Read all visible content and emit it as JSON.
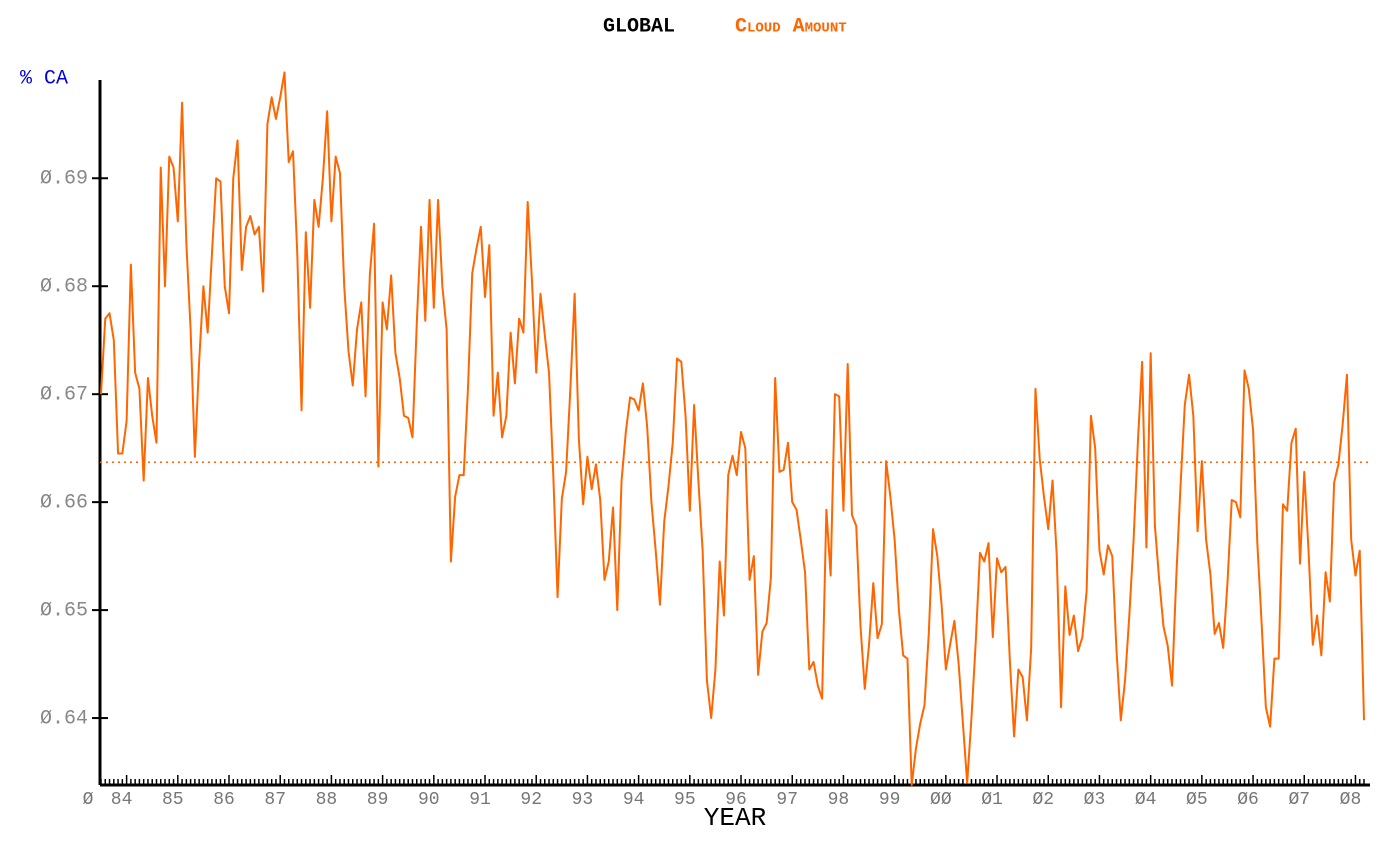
{
  "chart_data": {
    "type": "line",
    "title": "GLOBAL",
    "subtitle": "Cloud Amount",
    "ylabel": "% CA",
    "xlabel": "YEAR",
    "origin_label": "Ø",
    "ylim": [
      0.6338,
      0.6991
    ],
    "yticks": [
      {
        "value": 0.64,
        "label": "Ø.64"
      },
      {
        "value": 0.65,
        "label": "Ø.65"
      },
      {
        "value": 0.66,
        "label": "Ø.66"
      },
      {
        "value": 0.67,
        "label": "Ø.67"
      },
      {
        "value": 0.68,
        "label": "Ø.68"
      },
      {
        "value": 0.69,
        "label": "Ø.69"
      }
    ],
    "reference_line": 0.6637,
    "categories": [
      null,
      null,
      null,
      null,
      null,
      null,
      "84",
      null,
      null,
      null,
      null,
      null,
      null,
      null,
      null,
      null,
      null,
      null,
      "85",
      null,
      null,
      null,
      null,
      null,
      null,
      null,
      null,
      null,
      null,
      null,
      "86",
      null,
      null,
      null,
      null,
      null,
      null,
      null,
      null,
      null,
      null,
      null,
      "87",
      null,
      null,
      null,
      null,
      null,
      null,
      null,
      null,
      null,
      null,
      null,
      "88",
      null,
      null,
      null,
      null,
      null,
      null,
      null,
      null,
      null,
      null,
      null,
      "89",
      null,
      null,
      null,
      null,
      null,
      null,
      null,
      null,
      null,
      null,
      null,
      "90",
      null,
      null,
      null,
      null,
      null,
      null,
      null,
      null,
      null,
      null,
      null,
      "91",
      null,
      null,
      null,
      null,
      null,
      null,
      null,
      null,
      null,
      null,
      null,
      "92",
      null,
      null,
      null,
      null,
      null,
      null,
      null,
      null,
      null,
      null,
      null,
      "93",
      null,
      null,
      null,
      null,
      null,
      null,
      null,
      null,
      null,
      null,
      null,
      "94",
      null,
      null,
      null,
      null,
      null,
      null,
      null,
      null,
      null,
      null,
      null,
      "95",
      null,
      null,
      null,
      null,
      null,
      null,
      null,
      null,
      null,
      null,
      null,
      "96",
      null,
      null,
      null,
      null,
      null,
      null,
      null,
      null,
      null,
      null,
      null,
      "97",
      null,
      null,
      null,
      null,
      null,
      null,
      null,
      null,
      null,
      null,
      null,
      "98",
      null,
      null,
      null,
      null,
      null,
      null,
      null,
      null,
      null,
      null,
      null,
      "99",
      null,
      null,
      null,
      null,
      null,
      null,
      null,
      null,
      null,
      null,
      null,
      "ØØ",
      null,
      null,
      null,
      null,
      null,
      null,
      null,
      null,
      null,
      null,
      null,
      "Ø1",
      null,
      null,
      null,
      null,
      null,
      null,
      null,
      null,
      null,
      null,
      null,
      "Ø2",
      null,
      null,
      null,
      null,
      null,
      null,
      null,
      null,
      null,
      null,
      null,
      "Ø3",
      null,
      null,
      null,
      null,
      null,
      null,
      null,
      null,
      null,
      null,
      null,
      "Ø4",
      null,
      null,
      null,
      null,
      null,
      null,
      null,
      null,
      null,
      null,
      null,
      "Ø5",
      null,
      null,
      null,
      null,
      null,
      null,
      null,
      null,
      null,
      null,
      null,
      "Ø6",
      null,
      null,
      null,
      null,
      null,
      null,
      null,
      null,
      null,
      null,
      null,
      "Ø7",
      null,
      null,
      null,
      null,
      null,
      null,
      null,
      null,
      null,
      null,
      null,
      "Ø8",
      null,
      null
    ],
    "series": [
      {
        "color": "#ff6600",
        "values": [
          0.67,
          0.677,
          0.6775,
          0.675,
          0.6645,
          0.6645,
          0.6675,
          0.682,
          0.672,
          0.6705,
          0.662,
          0.6715,
          0.668,
          0.6655,
          0.691,
          0.68,
          0.692,
          0.691,
          0.686,
          0.697,
          0.684,
          0.676,
          0.6642,
          0.673,
          0.68,
          0.6757,
          0.683,
          0.69,
          0.6897,
          0.68,
          0.6775,
          0.69,
          0.6935,
          0.6815,
          0.6855,
          0.6865,
          0.6848,
          0.6855,
          0.6795,
          0.695,
          0.6975,
          0.6955,
          0.6975,
          0.6998,
          0.6915,
          0.6925,
          0.683,
          0.6685,
          0.685,
          0.678,
          0.688,
          0.6855,
          0.69,
          0.6962,
          0.686,
          0.692,
          0.6905,
          0.68,
          0.674,
          0.6708,
          0.676,
          0.6785,
          0.6698,
          0.681,
          0.6858,
          0.6633,
          0.6785,
          0.676,
          0.681,
          0.6738,
          0.6715,
          0.668,
          0.6678,
          0.666,
          0.6765,
          0.6855,
          0.6768,
          0.688,
          0.678,
          0.688,
          0.68,
          0.676,
          0.6545,
          0.6605,
          0.6625,
          0.6625,
          0.6705,
          0.6812,
          0.6835,
          0.6855,
          0.679,
          0.6838,
          0.668,
          0.672,
          0.666,
          0.668,
          0.6757,
          0.671,
          0.677,
          0.6757,
          0.6878,
          0.6805,
          0.672,
          0.6793,
          0.6755,
          0.672,
          0.6625,
          0.6512,
          0.6603,
          0.6628,
          0.6705,
          0.6793,
          0.6658,
          0.6598,
          0.6642,
          0.6612,
          0.6635,
          0.6602,
          0.6528,
          0.6545,
          0.6595,
          0.65,
          0.662,
          0.6665,
          0.6697,
          0.6695,
          0.6685,
          0.671,
          0.667,
          0.66,
          0.6555,
          0.6505,
          0.6582,
          0.6615,
          0.6655,
          0.6733,
          0.673,
          0.668,
          0.6592,
          0.669,
          0.662,
          0.6555,
          0.6435,
          0.64,
          0.6445,
          0.6545,
          0.6495,
          0.6625,
          0.6643,
          0.6625,
          0.6665,
          0.665,
          0.6528,
          0.655,
          0.644,
          0.648,
          0.6488,
          0.653,
          0.6715,
          0.6628,
          0.663,
          0.6655,
          0.66,
          0.6593,
          0.6565,
          0.6535,
          0.6445,
          0.6452,
          0.643,
          0.6418,
          0.6593,
          0.6532,
          0.67,
          0.6698,
          0.6592,
          0.6728,
          0.6588,
          0.6578,
          0.6485,
          0.6427,
          0.6468,
          0.6525,
          0.6474,
          0.6487,
          0.6638,
          0.6605,
          0.6565,
          0.65,
          0.6458,
          0.6455,
          0.6338,
          0.6372,
          0.6395,
          0.6412,
          0.6478,
          0.6575,
          0.655,
          0.6505,
          0.6445,
          0.6468,
          0.649,
          0.645,
          0.6395,
          0.634,
          0.64,
          0.647,
          0.6553,
          0.6545,
          0.6562,
          0.6475,
          0.6548,
          0.6535,
          0.654,
          0.6453,
          0.6383,
          0.6445,
          0.6438,
          0.6398,
          0.6465,
          0.6705,
          0.664,
          0.6605,
          0.6575,
          0.662,
          0.655,
          0.641,
          0.6522,
          0.6477,
          0.6495,
          0.6462,
          0.6475,
          0.6518,
          0.668,
          0.665,
          0.6555,
          0.6533,
          0.656,
          0.655,
          0.6462,
          0.6398,
          0.6435,
          0.6495,
          0.6565,
          0.6655,
          0.673,
          0.6558,
          0.6738,
          0.6578,
          0.6528,
          0.6485,
          0.6467,
          0.643,
          0.653,
          0.6615,
          0.669,
          0.6718,
          0.668,
          0.6573,
          0.6638,
          0.6565,
          0.6533,
          0.6478,
          0.6488,
          0.6465,
          0.6525,
          0.6602,
          0.66,
          0.6586,
          0.6722,
          0.6705,
          0.6667,
          0.6562,
          0.6488,
          0.641,
          0.6392,
          0.6455,
          0.6455,
          0.6598,
          0.6592,
          0.6655,
          0.6668,
          0.6543,
          0.6628,
          0.6555,
          0.6468,
          0.6495,
          0.6458,
          0.6535,
          0.6508,
          0.6618,
          0.6635,
          0.6672,
          0.6718,
          0.6565,
          0.6532,
          0.6555,
          0.6398
        ]
      }
    ]
  }
}
